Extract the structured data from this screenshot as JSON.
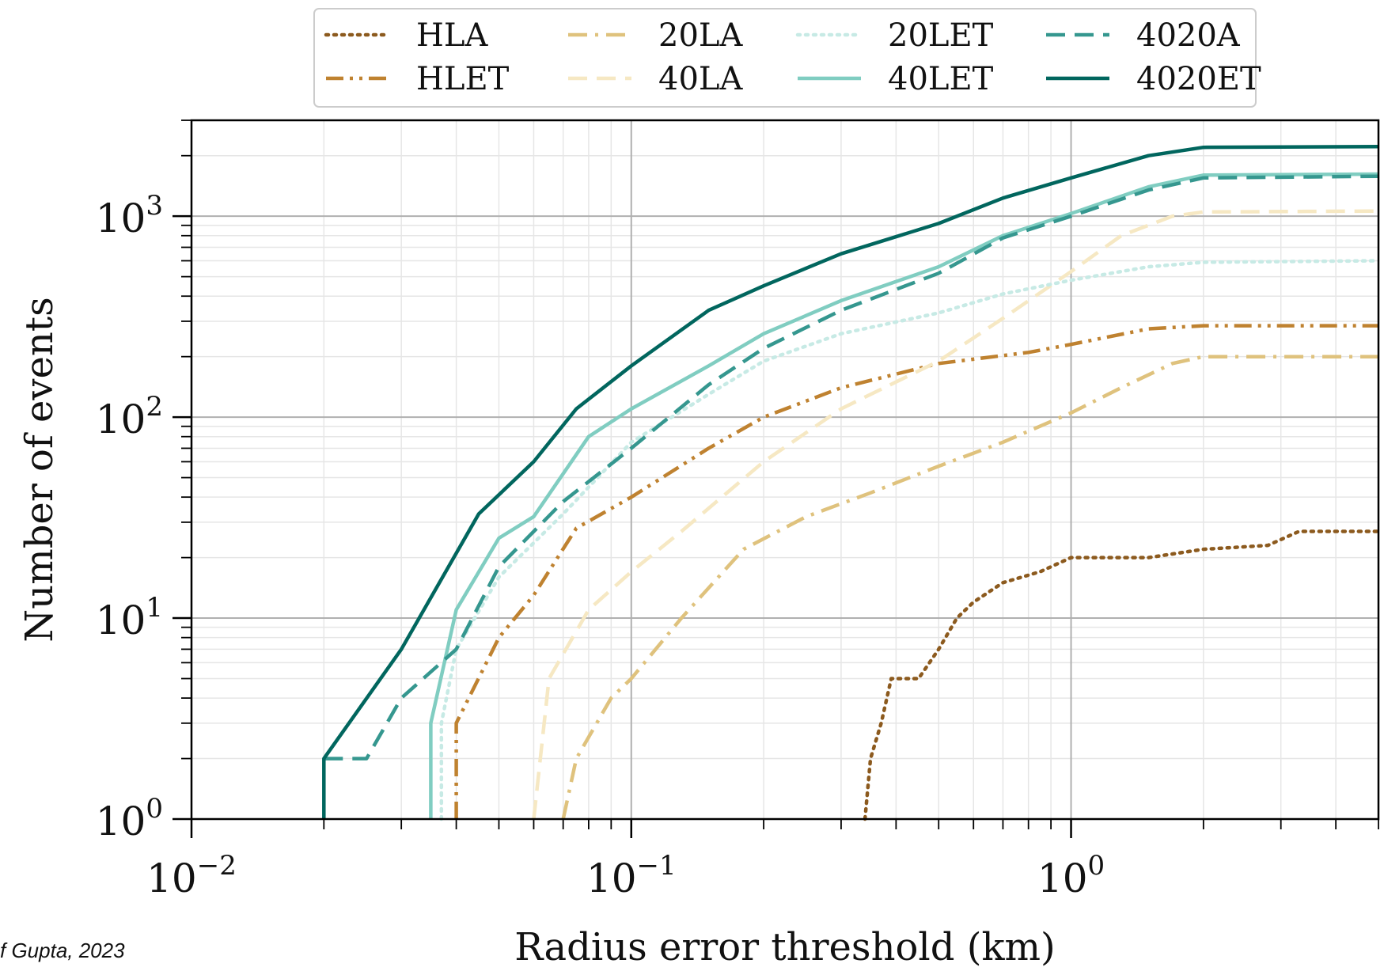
{
  "credit": "f Gupta, 2023",
  "chart_data": {
    "type": "line",
    "xlabel": "Radius error threshold (km)",
    "ylabel": "Number of events",
    "x_scale": "log",
    "y_scale": "log",
    "xlim": [
      0.01,
      5
    ],
    "ylim": [
      1,
      3000
    ],
    "x_ticks": [
      {
        "value": 0.01,
        "base": "10",
        "exp": "−2"
      },
      {
        "value": 0.1,
        "base": "10",
        "exp": "−1"
      },
      {
        "value": 1,
        "base": "10",
        "exp": "0"
      }
    ],
    "y_ticks": [
      {
        "value": 1,
        "base": "10",
        "exp": "0"
      },
      {
        "value": 10,
        "base": "10",
        "exp": "1"
      },
      {
        "value": 100,
        "base": "10",
        "exp": "2"
      },
      {
        "value": 1000,
        "base": "10",
        "exp": "3"
      }
    ],
    "grid": true,
    "legend_position": "top",
    "series": [
      {
        "name": "HLA",
        "color": "#8c5a1e",
        "style": "dotted",
        "points": [
          [
            0.34,
            1
          ],
          [
            0.35,
            2
          ],
          [
            0.37,
            3
          ],
          [
            0.39,
            5
          ],
          [
            0.45,
            5
          ],
          [
            0.5,
            7
          ],
          [
            0.55,
            10
          ],
          [
            0.6,
            12
          ],
          [
            0.7,
            15
          ],
          [
            0.85,
            17
          ],
          [
            1.0,
            20
          ],
          [
            1.5,
            20
          ],
          [
            2.0,
            22
          ],
          [
            2.8,
            23
          ],
          [
            3.3,
            27
          ],
          [
            5,
            27
          ]
        ]
      },
      {
        "name": "HLET",
        "color": "#bf8230",
        "style": "dashdotdot",
        "points": [
          [
            0.04,
            1
          ],
          [
            0.04,
            3
          ],
          [
            0.05,
            8
          ],
          [
            0.06,
            13
          ],
          [
            0.075,
            28
          ],
          [
            0.1,
            40
          ],
          [
            0.15,
            70
          ],
          [
            0.2,
            100
          ],
          [
            0.3,
            140
          ],
          [
            0.5,
            185
          ],
          [
            0.8,
            210
          ],
          [
            1.0,
            230
          ],
          [
            1.5,
            275
          ],
          [
            2.0,
            285
          ],
          [
            5,
            285
          ]
        ]
      },
      {
        "name": "20LA",
        "color": "#dfc27d",
        "style": "dashdot",
        "points": [
          [
            0.07,
            1
          ],
          [
            0.075,
            2
          ],
          [
            0.09,
            4
          ],
          [
            0.1,
            5
          ],
          [
            0.13,
            10
          ],
          [
            0.18,
            22
          ],
          [
            0.25,
            32
          ],
          [
            0.35,
            42
          ],
          [
            0.5,
            57
          ],
          [
            0.7,
            75
          ],
          [
            1.0,
            105
          ],
          [
            1.3,
            140
          ],
          [
            1.7,
            185
          ],
          [
            2.0,
            200
          ],
          [
            5,
            200
          ]
        ]
      },
      {
        "name": "40LA",
        "color": "#f6e8c3",
        "style": "dashed",
        "points": [
          [
            0.06,
            1
          ],
          [
            0.065,
            5
          ],
          [
            0.08,
            11
          ],
          [
            0.1,
            17
          ],
          [
            0.13,
            27
          ],
          [
            0.2,
            60
          ],
          [
            0.3,
            110
          ],
          [
            0.5,
            190
          ],
          [
            0.7,
            310
          ],
          [
            1.0,
            530
          ],
          [
            1.3,
            800
          ],
          [
            1.7,
            1000
          ],
          [
            2.0,
            1050
          ],
          [
            5,
            1060
          ]
        ]
      },
      {
        "name": "20LET",
        "color": "#c7eae5",
        "style": "dotted",
        "points": [
          [
            0.037,
            1
          ],
          [
            0.037,
            3
          ],
          [
            0.04,
            7
          ],
          [
            0.05,
            16
          ],
          [
            0.07,
            33
          ],
          [
            0.1,
            75
          ],
          [
            0.15,
            130
          ],
          [
            0.2,
            190
          ],
          [
            0.3,
            260
          ],
          [
            0.5,
            330
          ],
          [
            0.7,
            410
          ],
          [
            1.0,
            480
          ],
          [
            1.5,
            560
          ],
          [
            2.0,
            590
          ],
          [
            5,
            600
          ]
        ]
      },
      {
        "name": "40LET",
        "color": "#80cdc1",
        "style": "solid",
        "points": [
          [
            0.035,
            1
          ],
          [
            0.035,
            3
          ],
          [
            0.04,
            11
          ],
          [
            0.05,
            25
          ],
          [
            0.06,
            32
          ],
          [
            0.08,
            80
          ],
          [
            0.1,
            110
          ],
          [
            0.15,
            180
          ],
          [
            0.2,
            260
          ],
          [
            0.3,
            380
          ],
          [
            0.5,
            560
          ],
          [
            0.7,
            800
          ],
          [
            1.0,
            1030
          ],
          [
            1.5,
            1400
          ],
          [
            2.0,
            1600
          ],
          [
            5,
            1620
          ]
        ]
      },
      {
        "name": "4020A",
        "color": "#35978f",
        "style": "dashed",
        "points": [
          [
            0.02,
            2
          ],
          [
            0.025,
            2
          ],
          [
            0.03,
            4
          ],
          [
            0.04,
            7
          ],
          [
            0.05,
            18
          ],
          [
            0.07,
            38
          ],
          [
            0.1,
            70
          ],
          [
            0.15,
            145
          ],
          [
            0.2,
            220
          ],
          [
            0.3,
            340
          ],
          [
            0.5,
            520
          ],
          [
            0.7,
            780
          ],
          [
            1.0,
            1000
          ],
          [
            1.5,
            1350
          ],
          [
            2.0,
            1550
          ],
          [
            5,
            1580
          ]
        ]
      },
      {
        "name": "4020ET",
        "color": "#01665e",
        "style": "solid",
        "points": [
          [
            0.02,
            1
          ],
          [
            0.02,
            2
          ],
          [
            0.03,
            7
          ],
          [
            0.045,
            33
          ],
          [
            0.06,
            60
          ],
          [
            0.075,
            110
          ],
          [
            0.1,
            180
          ],
          [
            0.15,
            340
          ],
          [
            0.2,
            450
          ],
          [
            0.3,
            650
          ],
          [
            0.5,
            920
          ],
          [
            0.7,
            1230
          ],
          [
            1.0,
            1550
          ],
          [
            1.5,
            2000
          ],
          [
            2.0,
            2200
          ],
          [
            5,
            2220
          ]
        ]
      }
    ]
  }
}
